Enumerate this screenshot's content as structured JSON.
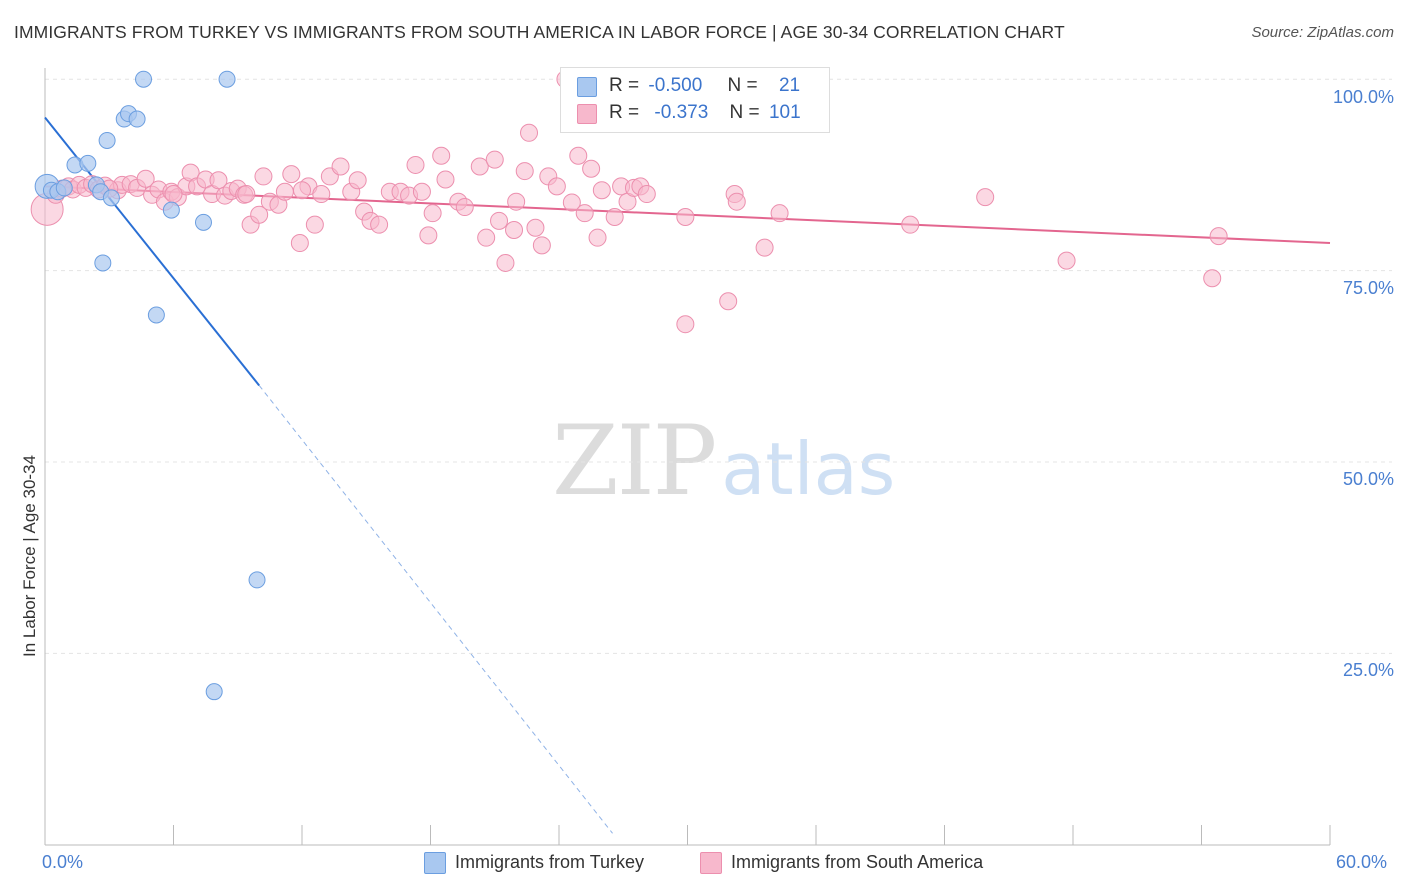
{
  "title": "IMMIGRANTS FROM TURKEY VS IMMIGRANTS FROM SOUTH AMERICA IN LABOR FORCE | AGE 30-34 CORRELATION CHART",
  "source": "Source: ZipAtlas.com",
  "watermark": {
    "zip": "ZIP",
    "atlas": "atlas"
  },
  "colors": {
    "turkey_fill": "#a9c8f0",
    "turkey_stroke": "#6b9ee0",
    "turkey_line": "#2a6fd4",
    "sa_fill": "#f7b8cc",
    "sa_stroke": "#ec8fae",
    "sa_line": "#e3668f",
    "axis_text": "#4a7fd0",
    "grid": "#e4e4e4"
  },
  "legend": {
    "rows": [
      {
        "r_label": "R =",
        "r_value": "-0.500",
        "n_label": "N =",
        "n_value": "21"
      },
      {
        "r_label": "R =",
        "r_value": "-0.373",
        "n_label": "N =",
        "n_value": "101"
      }
    ]
  },
  "bottom_legend": {
    "turkey": "Immigrants from Turkey",
    "south_america": "Immigrants from South America"
  },
  "chart_data": {
    "type": "scatter",
    "title": "IMMIGRANTS FROM TURKEY VS IMMIGRANTS FROM SOUTH AMERICA IN LABOR FORCE | AGE 30-34 CORRELATION CHART",
    "xlabel": "",
    "ylabel": "In Labor Force | Age 30-34",
    "xlim": [
      0,
      60
    ],
    "ylim": [
      0,
      102
    ],
    "x_tick_labels": {
      "min": "0.0%",
      "max": "60.0%"
    },
    "y_ticks": [
      {
        "value": 100,
        "label": "100.0%"
      },
      {
        "value": 75,
        "label": "75.0%"
      },
      {
        "value": 50,
        "label": "50.0%"
      },
      {
        "value": 25,
        "label": "25.0%"
      }
    ],
    "grid": true,
    "series": [
      {
        "name": "Immigrants from Turkey",
        "R": -0.5,
        "N": 21,
        "trend": {
          "x0": 0,
          "y0": 95.0,
          "x1": 10,
          "y1": 60.0,
          "dash_x1": 26.5,
          "dash_y1": 1.5
        },
        "points": [
          [
            0.1,
            86.0
          ],
          [
            0.3,
            85.5
          ],
          [
            0.6,
            85.3
          ],
          [
            0.9,
            85.8
          ],
          [
            1.4,
            88.8
          ],
          [
            2.0,
            89.0
          ],
          [
            2.4,
            86.2
          ],
          [
            2.6,
            85.3
          ],
          [
            3.1,
            84.5
          ],
          [
            2.9,
            92.0
          ],
          [
            3.7,
            94.8
          ],
          [
            3.9,
            95.5
          ],
          [
            4.3,
            94.8
          ],
          [
            4.6,
            100.0
          ],
          [
            8.5,
            100.0
          ],
          [
            5.9,
            82.9
          ],
          [
            7.4,
            81.3
          ],
          [
            2.7,
            76.0
          ],
          [
            5.2,
            69.2
          ],
          [
            9.9,
            34.6
          ],
          [
            7.9,
            20.0
          ]
        ]
      },
      {
        "name": "Immigrants from South America",
        "R": -0.373,
        "N": 101,
        "trend": {
          "x0": 0,
          "y0": 86.0,
          "x1": 60,
          "y1": 78.6
        },
        "points": [
          [
            0.1,
            83.0
          ],
          [
            0.5,
            84.9
          ],
          [
            0.8,
            85.7
          ],
          [
            1.1,
            86.0
          ],
          [
            1.3,
            85.6
          ],
          [
            1.6,
            86.2
          ],
          [
            1.9,
            85.8
          ],
          [
            2.2,
            86.3
          ],
          [
            2.5,
            85.6
          ],
          [
            2.8,
            86.1
          ],
          [
            3.4,
            85.5
          ],
          [
            3.6,
            86.2
          ],
          [
            4.0,
            86.3
          ],
          [
            4.3,
            85.8
          ],
          [
            4.7,
            87.0
          ],
          [
            5.0,
            84.9
          ],
          [
            5.3,
            85.6
          ],
          [
            5.6,
            84.0
          ],
          [
            5.9,
            85.3
          ],
          [
            6.2,
            84.6
          ],
          [
            6.6,
            86.0
          ],
          [
            6.8,
            87.8
          ],
          [
            7.1,
            86.0
          ],
          [
            7.5,
            86.9
          ],
          [
            7.8,
            85.0
          ],
          [
            8.1,
            86.8
          ],
          [
            8.4,
            84.8
          ],
          [
            8.7,
            85.4
          ],
          [
            9.0,
            85.7
          ],
          [
            9.3,
            84.9
          ],
          [
            9.6,
            81.0
          ],
          [
            10.0,
            82.3
          ],
          [
            10.2,
            87.3
          ],
          [
            10.5,
            84.0
          ],
          [
            10.9,
            83.6
          ],
          [
            11.2,
            85.3
          ],
          [
            11.5,
            87.6
          ],
          [
            11.9,
            78.6
          ],
          [
            12.3,
            86.0
          ],
          [
            12.6,
            81.0
          ],
          [
            12.9,
            85.0
          ],
          [
            13.3,
            87.3
          ],
          [
            13.8,
            88.6
          ],
          [
            14.3,
            85.3
          ],
          [
            14.6,
            86.8
          ],
          [
            14.9,
            82.7
          ],
          [
            15.2,
            81.5
          ],
          [
            15.6,
            81.0
          ],
          [
            16.1,
            85.3
          ],
          [
            16.6,
            85.3
          ],
          [
            17.0,
            84.8
          ],
          [
            17.3,
            88.8
          ],
          [
            17.6,
            85.3
          ],
          [
            17.9,
            79.6
          ],
          [
            18.1,
            82.5
          ],
          [
            18.7,
            86.9
          ],
          [
            18.5,
            90.0
          ],
          [
            19.3,
            84.0
          ],
          [
            19.6,
            83.3
          ],
          [
            20.3,
            88.6
          ],
          [
            20.6,
            79.3
          ],
          [
            21.0,
            89.5
          ],
          [
            21.2,
            81.5
          ],
          [
            21.5,
            76.0
          ],
          [
            21.9,
            80.3
          ],
          [
            22.0,
            84.0
          ],
          [
            22.4,
            88.0
          ],
          [
            22.6,
            93.0
          ],
          [
            22.9,
            80.6
          ],
          [
            23.2,
            78.3
          ],
          [
            23.5,
            87.3
          ],
          [
            23.9,
            86.0
          ],
          [
            24.6,
            83.9
          ],
          [
            24.3,
            100.0
          ],
          [
            24.9,
            90.0
          ],
          [
            25.2,
            82.5
          ],
          [
            25.5,
            88.3
          ],
          [
            25.8,
            79.3
          ],
          [
            26.6,
            82.0
          ],
          [
            26.9,
            86.0
          ],
          [
            27.2,
            84.0
          ],
          [
            27.5,
            85.8
          ],
          [
            27.8,
            86.0
          ],
          [
            28.1,
            85.0
          ],
          [
            29.9,
            82.0
          ],
          [
            29.9,
            68.0
          ],
          [
            31.9,
            71.0
          ],
          [
            32.2,
            85.0
          ],
          [
            32.3,
            84.0
          ],
          [
            33.6,
            78.0
          ],
          [
            34.3,
            82.5
          ],
          [
            40.4,
            81.0
          ],
          [
            43.9,
            84.6
          ],
          [
            47.7,
            76.3
          ],
          [
            54.8,
            79.5
          ],
          [
            54.5,
            74.0
          ],
          [
            26.0,
            85.5
          ],
          [
            9.4,
            85.0
          ],
          [
            12.0,
            85.5
          ],
          [
            6.0,
            85.0
          ],
          [
            3.0,
            85.7
          ]
        ]
      }
    ]
  }
}
